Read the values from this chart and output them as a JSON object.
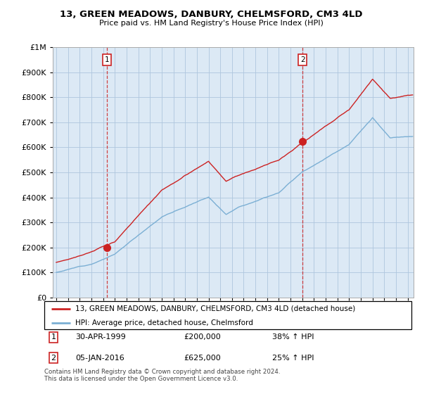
{
  "title": "13, GREEN MEADOWS, DANBURY, CHELMSFORD, CM3 4LD",
  "subtitle": "Price paid vs. HM Land Registry's House Price Index (HPI)",
  "legend_line1": "13, GREEN MEADOWS, DANBURY, CHELMSFORD, CM3 4LD (detached house)",
  "legend_line2": "HPI: Average price, detached house, Chelmsford",
  "footnote": "Contains HM Land Registry data © Crown copyright and database right 2024.\nThis data is licensed under the Open Government Licence v3.0.",
  "sale1_date": "30-APR-1999",
  "sale1_price": 200000,
  "sale1_label": "38% ↑ HPI",
  "sale2_date": "05-JAN-2016",
  "sale2_price": 625000,
  "sale2_label": "25% ↑ HPI",
  "sale1_year": 1999.33,
  "sale2_year": 2016.03,
  "hpi_color": "#7bafd4",
  "price_color": "#cc2222",
  "vline_color": "#cc2222",
  "dot_color": "#cc2222",
  "bg_color": "#dce9f5",
  "grid_color": "#aec6de",
  "ylim_max": 1000000,
  "xlim_start": 1994.7,
  "xlim_end": 2025.5
}
